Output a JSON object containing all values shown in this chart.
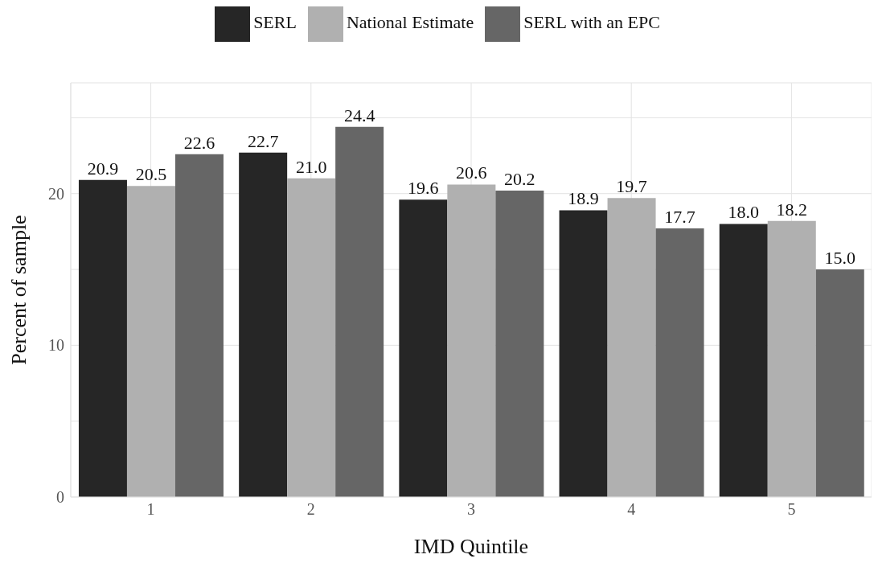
{
  "chart_data": {
    "type": "bar",
    "xlabel": "IMD Quintile",
    "ylabel": "Percent of sample",
    "categories": [
      "1",
      "2",
      "3",
      "4",
      "5"
    ],
    "series": [
      {
        "name": "SERL",
        "color": "#262626",
        "values": [
          20.9,
          22.7,
          19.6,
          18.9,
          18.0
        ],
        "value_labels": [
          "20.9",
          "22.7",
          "19.6",
          "18.9",
          "18.0"
        ]
      },
      {
        "name": "National Estimate",
        "color": "#b0b0b0",
        "values": [
          20.5,
          21.0,
          20.6,
          19.7,
          18.2
        ],
        "value_labels": [
          "20.5",
          "21.0",
          "20.6",
          "19.7",
          "18.2"
        ]
      },
      {
        "name": "SERL with an EPC",
        "color": "#666666",
        "values": [
          22.6,
          24.4,
          20.2,
          17.7,
          15.0
        ],
        "value_labels": [
          "22.6",
          "24.4",
          "20.2",
          "17.7",
          "15.0"
        ]
      }
    ],
    "ylim": [
      0,
      27.3
    ],
    "yticks": [
      0,
      {
        "value": 5,
        "label": null
      },
      10,
      {
        "value": 15,
        "label": null
      },
      20,
      {
        "value": 25,
        "label": null
      }
    ],
    "grid": true,
    "legend": "top"
  }
}
